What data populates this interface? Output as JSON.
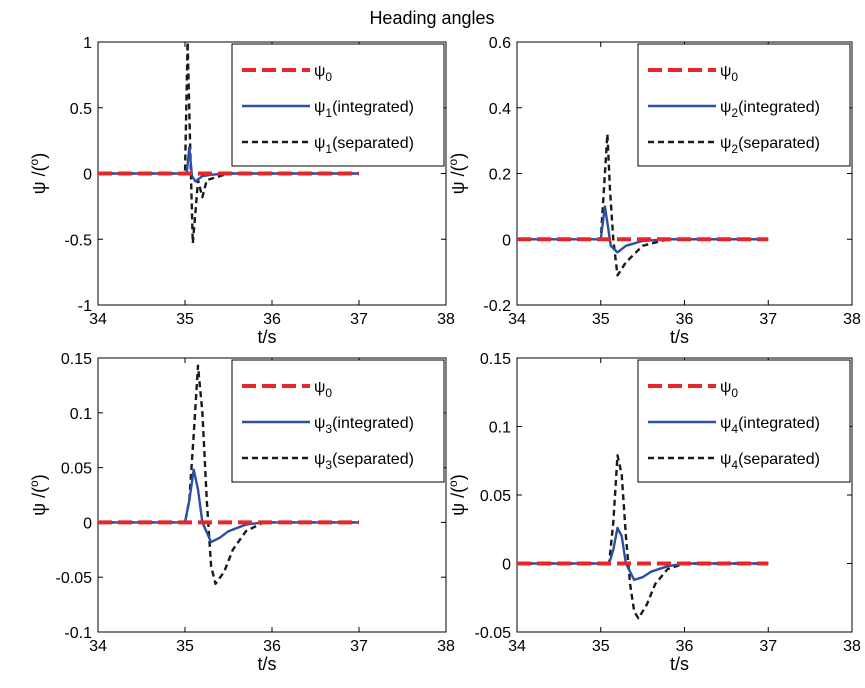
{
  "figure": {
    "suptitle": "Heading angles"
  },
  "chart_data": [
    {
      "type": "line",
      "xlabel": "t/s",
      "ylabel": {
        "main": "ψ /(",
        "sup": "o",
        "close": ")"
      },
      "xlim": [
        34,
        38
      ],
      "ylim": [
        -1,
        1
      ],
      "xticks": [
        34,
        35,
        36,
        37,
        38
      ],
      "yticks": [
        -1,
        -0.5,
        0,
        0.5,
        1
      ],
      "legend_position": "top-right",
      "series": [
        {
          "name": "ψ0",
          "label": {
            "psi": "ψ",
            "sub": "0",
            "suffix": ""
          },
          "color": "#e8262a",
          "dash": "long",
          "x": [
            34,
            37
          ],
          "y": [
            0,
            0
          ]
        },
        {
          "name": "ψ1(integrated)",
          "label": {
            "psi": "ψ",
            "sub": "1",
            "suffix": "(integrated)"
          },
          "color": "#2c4fa3",
          "dash": "solid",
          "x": [
            34,
            35.02,
            35.05,
            35.08,
            35.12,
            35.2,
            35.3,
            35.45,
            37
          ],
          "y": [
            0,
            0,
            0.2,
            -0.02,
            -0.06,
            -0.02,
            -0.01,
            0,
            0
          ]
        },
        {
          "name": "ψ1(separated)",
          "label": {
            "psi": "ψ",
            "sub": "1",
            "suffix": "(separated)"
          },
          "color": "#1a1a1a",
          "dash": "short",
          "x": [
            34,
            35.0,
            35.03,
            35.06,
            35.09,
            35.12,
            35.15,
            35.2,
            35.25,
            35.35,
            35.5,
            37
          ],
          "y": [
            0,
            0,
            1.0,
            0.2,
            -0.53,
            -0.3,
            -0.05,
            -0.18,
            -0.05,
            -0.03,
            0,
            0
          ]
        }
      ]
    },
    {
      "type": "line",
      "xlabel": "t/s",
      "ylabel": {
        "main": "ψ /(",
        "sup": "o",
        "close": ")"
      },
      "xlim": [
        34,
        38
      ],
      "ylim": [
        -0.2,
        0.6
      ],
      "xticks": [
        34,
        35,
        36,
        37,
        38
      ],
      "yticks": [
        -0.2,
        0,
        0.2,
        0.4,
        0.6
      ],
      "legend_position": "top-right",
      "series": [
        {
          "name": "ψ0",
          "label": {
            "psi": "ψ",
            "sub": "0",
            "suffix": ""
          },
          "color": "#e8262a",
          "dash": "long",
          "x": [
            34,
            37
          ],
          "y": [
            0,
            0
          ]
        },
        {
          "name": "ψ2(integrated)",
          "label": {
            "psi": "ψ",
            "sub": "2",
            "suffix": "(integrated)"
          },
          "color": "#2c4fa3",
          "dash": "solid",
          "x": [
            34,
            35.0,
            35.05,
            35.08,
            35.12,
            35.2,
            35.3,
            35.5,
            35.8,
            37
          ],
          "y": [
            0,
            0,
            0.1,
            0.05,
            -0.02,
            -0.04,
            -0.02,
            -0.005,
            0,
            0
          ]
        },
        {
          "name": "ψ2(separated)",
          "label": {
            "psi": "ψ",
            "sub": "2",
            "suffix": "(separated)"
          },
          "color": "#1a1a1a",
          "dash": "short",
          "x": [
            34,
            35.0,
            35.05,
            35.08,
            35.11,
            35.15,
            35.2,
            35.3,
            35.5,
            35.8,
            37
          ],
          "y": [
            0,
            0,
            0.2,
            0.32,
            0.15,
            0.0,
            -0.11,
            -0.07,
            -0.02,
            0,
            0
          ]
        }
      ]
    },
    {
      "type": "line",
      "xlabel": "t/s",
      "ylabel": {
        "main": "ψ /(",
        "sup": "o",
        "close": ")"
      },
      "xlim": [
        34,
        38
      ],
      "ylim": [
        -0.1,
        0.15
      ],
      "xticks": [
        34,
        35,
        36,
        37,
        38
      ],
      "yticks": [
        -0.1,
        -0.05,
        0,
        0.05,
        0.1,
        0.15
      ],
      "legend_position": "top-right",
      "series": [
        {
          "name": "ψ0",
          "label": {
            "psi": "ψ",
            "sub": "0",
            "suffix": ""
          },
          "color": "#e8262a",
          "dash": "long",
          "x": [
            34,
            37
          ],
          "y": [
            0,
            0
          ]
        },
        {
          "name": "ψ3(integrated)",
          "label": {
            "psi": "ψ",
            "sub": "3",
            "suffix": "(integrated)"
          },
          "color": "#2c4fa3",
          "dash": "solid",
          "x": [
            34,
            35.0,
            35.05,
            35.1,
            35.15,
            35.2,
            35.3,
            35.4,
            35.5,
            35.7,
            35.9,
            37
          ],
          "y": [
            0,
            0,
            0.02,
            0.048,
            0.03,
            0.0,
            -0.018,
            -0.014,
            -0.008,
            -0.002,
            0,
            0
          ]
        },
        {
          "name": "ψ3(separated)",
          "label": {
            "psi": "ψ",
            "sub": "3",
            "suffix": "(separated)"
          },
          "color": "#1a1a1a",
          "dash": "short",
          "x": [
            34,
            35.0,
            35.05,
            35.1,
            35.15,
            35.2,
            35.25,
            35.3,
            35.35,
            35.45,
            35.55,
            35.7,
            35.9,
            37
          ],
          "y": [
            0,
            0,
            0.02,
            0.08,
            0.143,
            0.1,
            0.02,
            -0.04,
            -0.056,
            -0.045,
            -0.025,
            -0.008,
            0,
            0
          ]
        }
      ]
    },
    {
      "type": "line",
      "xlabel": "t/s",
      "ylabel": {
        "main": "ψ /(",
        "sup": "o",
        "close": ")"
      },
      "xlim": [
        34,
        38
      ],
      "ylim": [
        -0.05,
        0.15
      ],
      "xticks": [
        34,
        35,
        36,
        37,
        38
      ],
      "yticks": [
        -0.05,
        0,
        0.05,
        0.1,
        0.15
      ],
      "legend_position": "top-right",
      "series": [
        {
          "name": "ψ0",
          "label": {
            "psi": "ψ",
            "sub": "0",
            "suffix": ""
          },
          "color": "#e8262a",
          "dash": "long",
          "x": [
            34,
            37
          ],
          "y": [
            0,
            0
          ]
        },
        {
          "name": "ψ4(integrated)",
          "label": {
            "psi": "ψ",
            "sub": "4",
            "suffix": "(integrated)"
          },
          "color": "#2c4fa3",
          "dash": "solid",
          "x": [
            34,
            35.1,
            35.15,
            35.2,
            35.25,
            35.3,
            35.4,
            35.5,
            35.6,
            35.8,
            36.0,
            37
          ],
          "y": [
            0,
            0,
            0.01,
            0.026,
            0.02,
            0.0,
            -0.012,
            -0.01,
            -0.006,
            -0.002,
            0,
            0
          ]
        },
        {
          "name": "ψ4(separated)",
          "label": {
            "psi": "ψ",
            "sub": "4",
            "suffix": "(separated)"
          },
          "color": "#1a1a1a",
          "dash": "short",
          "x": [
            34,
            35.1,
            35.15,
            35.2,
            35.25,
            35.3,
            35.35,
            35.4,
            35.45,
            35.55,
            35.65,
            35.8,
            36.0,
            37
          ],
          "y": [
            0,
            0,
            0.03,
            0.079,
            0.065,
            0.02,
            -0.015,
            -0.035,
            -0.04,
            -0.03,
            -0.015,
            -0.004,
            0,
            0
          ]
        }
      ]
    }
  ]
}
